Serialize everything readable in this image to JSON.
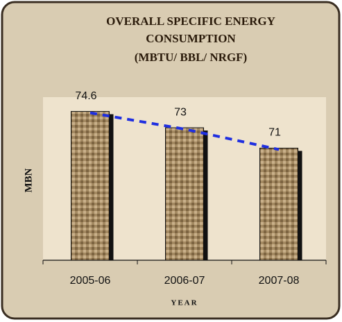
{
  "chart_data": {
    "type": "bar",
    "title": [
      "OVERALL SPECIFIC ENERGY",
      "CONSUMPTION",
      "(MBTU/ BBL/ NRGF)"
    ],
    "y_label": "MBN",
    "x_label": "YEAR",
    "categories": [
      "2005-06",
      "2006-07",
      "2007-08"
    ],
    "values": [
      74.6,
      73,
      71
    ],
    "color": "#a48a62",
    "trend_color": "#1f2fe0",
    "ylim": [
      60,
      76
    ]
  }
}
